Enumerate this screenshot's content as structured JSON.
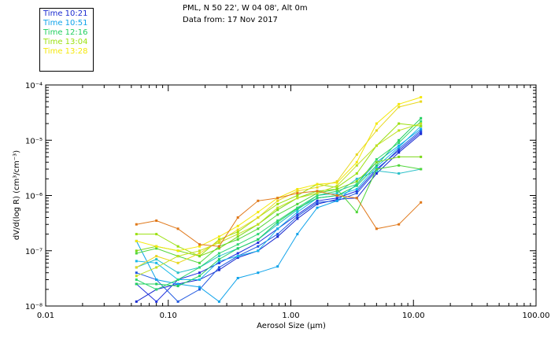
{
  "header": {
    "location": "PML, N 50 22', W 04 08', Alt 0m",
    "date": "Data from: 17 Nov 2017"
  },
  "legend": [
    {
      "label": "Time 10:21",
      "color": "#1a2bd0"
    },
    {
      "label": "Time 10:51",
      "color": "#0fa3ea"
    },
    {
      "label": "Time 12:16",
      "color": "#20cf5e"
    },
    {
      "label": "Time 13:04",
      "color": "#9be00e"
    },
    {
      "label": "Time 13:28",
      "color": "#f4e80a"
    }
  ],
  "chart_data": {
    "type": "line",
    "xscale": "log",
    "yscale": "log",
    "xlim": [
      0.01,
      100.0
    ],
    "ylim": [
      1e-08,
      0.0001
    ],
    "xlabel": "Aerosol Size (µm)",
    "ylabel": "dV/d(log R) (cm³/cm⁻³)",
    "xticks": [
      {
        "value": 0.01,
        "label": "0.01"
      },
      {
        "value": 0.1,
        "label": "0.10"
      },
      {
        "value": 1.0,
        "label": "1.00"
      },
      {
        "value": 10.0,
        "label": "10.00"
      },
      {
        "value": 100.0,
        "label": "100.00"
      }
    ],
    "yticks": [
      {
        "value": 1e-08,
        "label": "10⁻⁸"
      },
      {
        "value": 1e-07,
        "label": "10⁻⁷"
      },
      {
        "value": 1e-06,
        "label": "10⁻⁶"
      },
      {
        "value": 1e-05,
        "label": "10⁻⁵"
      },
      {
        "value": 0.0001,
        "label": "10⁻⁴"
      }
    ],
    "x": [
      0.055,
      0.08,
      0.12,
      0.18,
      0.26,
      0.37,
      0.54,
      0.78,
      1.13,
      1.64,
      2.38,
      3.45,
      5.0,
      7.6,
      11.5
    ],
    "series": [
      {
        "name": "10:21 a",
        "color": "#1a2bd0",
        "values": [
          1.2e-08,
          2e-08,
          2.5e-08,
          3e-08,
          4.5e-08,
          7.5e-08,
          1e-07,
          1.8e-07,
          3.8e-07,
          7e-07,
          8.5e-07,
          9e-07,
          2.5e-06,
          6e-06,
          1.3e-05
        ]
      },
      {
        "name": "10:21 b",
        "color": "#2233dd",
        "values": [
          2.5e-08,
          1.2e-08,
          3e-08,
          4e-08,
          6e-08,
          9e-08,
          1.4e-07,
          2.5e-07,
          4.5e-07,
          8e-07,
          9e-07,
          1.2e-06,
          3e-06,
          6.5e-06,
          1.4e-05
        ]
      },
      {
        "name": "10:21 c",
        "color": "#1f57e0",
        "values": [
          4e-08,
          3e-08,
          1.2e-08,
          2e-08,
          5e-08,
          8e-08,
          1.2e-07,
          2e-07,
          4.2e-07,
          7.5e-07,
          8e-07,
          1.1e-06,
          2.8e-06,
          7e-06,
          1.5e-05
        ]
      },
      {
        "name": "10:51 a",
        "color": "#0fa3ea",
        "values": [
          1.5e-07,
          3e-08,
          2.5e-08,
          2.2e-08,
          1.2e-08,
          3.2e-08,
          4e-08,
          5.2e-08,
          2e-07,
          6e-07,
          8e-07,
          1.6e-06,
          4e-06,
          8e-06,
          1.6e-05
        ]
      },
      {
        "name": "10:51 b",
        "color": "#18b8e8",
        "values": [
          6.5e-08,
          6e-08,
          3e-08,
          3e-08,
          6.5e-08,
          8e-08,
          1e-07,
          2.5e-07,
          5e-07,
          9e-07,
          1e-06,
          1.3e-06,
          3.3e-06,
          7.5e-06,
          1.8e-05
        ]
      },
      {
        "name": "10:51 c",
        "color": "#2ac0c8",
        "values": [
          5e-08,
          7e-08,
          4e-08,
          5e-08,
          8e-08,
          1.1e-07,
          1.6e-07,
          3e-07,
          5.5e-07,
          1e-06,
          1.1e-06,
          2e-06,
          2.8e-06,
          2.5e-06,
          3e-06
        ]
      },
      {
        "name": "12:16 a",
        "color": "#20cf5e",
        "values": [
          2.5e-08,
          2.5e-08,
          2.3e-08,
          3.5e-08,
          7e-08,
          1.1e-07,
          1.6e-07,
          3.3e-07,
          5.8e-07,
          9e-07,
          1e-06,
          1.5e-06,
          3.5e-06,
          1e-05,
          2.5e-05
        ]
      },
      {
        "name": "12:16 b",
        "color": "#30d870",
        "values": [
          3e-08,
          2e-08,
          3e-08,
          5e-08,
          9e-08,
          1.3e-07,
          2e-07,
          3.5e-07,
          6e-07,
          1e-06,
          1.2e-06,
          1.6e-06,
          4.5e-06,
          9e-06,
          2.2e-05
        ]
      },
      {
        "name": "12:16 c",
        "color": "#50d63a",
        "values": [
          9e-08,
          1.1e-07,
          8e-08,
          6e-08,
          1.2e-07,
          1.6e-07,
          2.5e-07,
          4.5e-07,
          7e-07,
          1.1e-06,
          1.3e-06,
          5e-07,
          3e-06,
          3.5e-06,
          3e-06
        ]
      },
      {
        "name": "13:04 a",
        "color": "#9be00e",
        "values": [
          2e-07,
          2e-07,
          1.2e-07,
          8e-08,
          1.6e-07,
          2.2e-07,
          4e-07,
          7e-07,
          1e-06,
          1.6e-06,
          1.4e-06,
          2.5e-06,
          8e-06,
          2e-05,
          1.8e-05
        ]
      },
      {
        "name": "13:04 b",
        "color": "#7cd81a",
        "values": [
          1e-07,
          1.2e-07,
          1e-07,
          8e-08,
          1.1e-07,
          1.8e-07,
          3e-07,
          5.5e-07,
          9e-07,
          1.2e-06,
          1.3e-06,
          1.8e-06,
          4e-06,
          5e-06,
          5e-06
        ]
      },
      {
        "name": "13:04 c",
        "color": "#c0e020",
        "values": [
          3.5e-08,
          5e-08,
          8e-08,
          1e-07,
          1.4e-07,
          2e-07,
          3e-07,
          6e-07,
          9e-07,
          1.1e-06,
          1.5e-06,
          3.5e-06,
          8e-06,
          1.5e-05,
          2e-05
        ]
      },
      {
        "name": "13:28 a",
        "color": "#f4e80a",
        "values": [
          1.5e-07,
          1.2e-07,
          1e-07,
          1.2e-07,
          1.8e-07,
          2.8e-07,
          5e-07,
          9e-07,
          1.3e-06,
          1.6e-06,
          1.7e-06,
          4e-06,
          2e-05,
          4.5e-05,
          6e-05
        ]
      },
      {
        "name": "13:28 b",
        "color": "#e8d820",
        "values": [
          5e-08,
          8e-08,
          6e-08,
          9e-08,
          1.5e-07,
          2.4e-07,
          4e-07,
          8e-07,
          1.2e-06,
          1.4e-06,
          1.8e-06,
          5.5e-06,
          1.5e-05,
          4e-05,
          5e-05
        ]
      },
      {
        "name": "13:28 c",
        "color": "#e0781a",
        "values": [
          3e-07,
          3.5e-07,
          2.5e-07,
          1.3e-07,
          1.2e-07,
          4e-07,
          8e-07,
          9e-07,
          1.1e-06,
          1.2e-06,
          1e-06,
          9e-07,
          2.5e-07,
          3e-07,
          7.5e-07
        ]
      }
    ]
  }
}
